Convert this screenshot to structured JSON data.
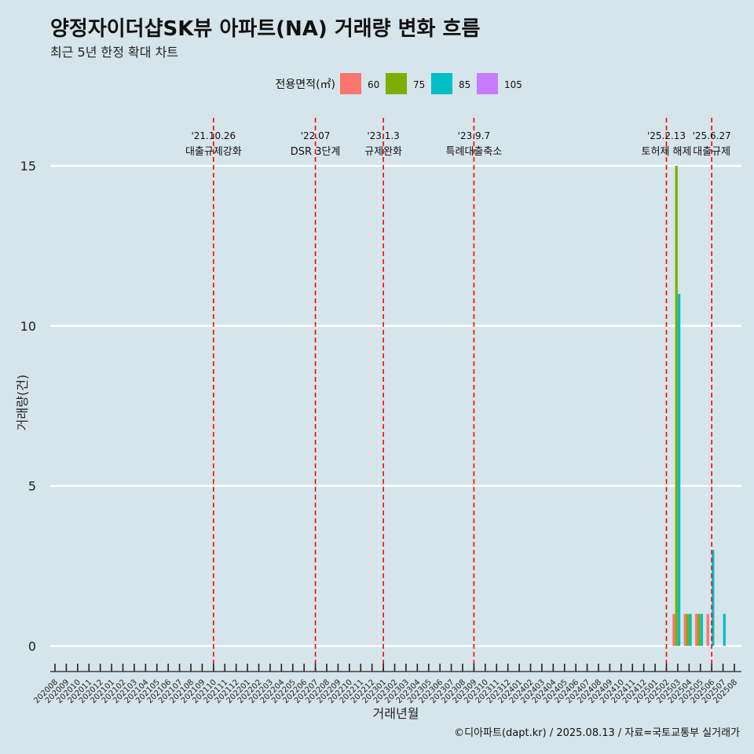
{
  "title": "양정자이더샵SK뷰 아파트(NA) 거래량 변화 흐름",
  "subtitle": "최근 5년 한정 확대 차트",
  "caption": "©디아파트(dapt.kr) / 2025.08.13 / 자료=국토교통부 실거래가",
  "chart_data": {
    "type": "bar",
    "title": "양정자이더샵SK뷰 아파트(NA) 거래량 변화 흐름",
    "subtitle": "최근 5년 한정 확대 차트",
    "xlabel": "거래년월",
    "ylabel": "거래량(건)",
    "ylim": [
      -0.8,
      16.5
    ],
    "yticks": [
      0,
      5,
      10,
      15
    ],
    "grid": "horizontal major lines",
    "legend": {
      "title": "전용면적(㎡)",
      "position": "top"
    },
    "categories": [
      "202008",
      "202009",
      "202010",
      "202011",
      "202012",
      "202101",
      "202102",
      "202103",
      "202104",
      "202105",
      "202106",
      "202107",
      "202108",
      "202109",
      "202110",
      "202111",
      "202112",
      "202201",
      "202202",
      "202203",
      "202204",
      "202205",
      "202206",
      "202207",
      "202208",
      "202209",
      "202210",
      "202211",
      "202212",
      "202301",
      "202302",
      "202303",
      "202304",
      "202305",
      "202306",
      "202307",
      "202308",
      "202309",
      "202310",
      "202311",
      "202312",
      "202401",
      "202402",
      "202403",
      "202404",
      "202405",
      "202406",
      "202407",
      "202408",
      "202409",
      "202410",
      "202411",
      "202412",
      "202501",
      "202502",
      "202503",
      "202504",
      "202505",
      "202506",
      "202507",
      "202508"
    ],
    "series": [
      {
        "name": "60",
        "color": "#f8766d",
        "values": {
          "202503": 1,
          "202504": 1,
          "202505": 1,
          "202506": 1
        }
      },
      {
        "name": "75",
        "color": "#7cae00",
        "values": {
          "202503": 15,
          "202504": 1,
          "202505": 1
        }
      },
      {
        "name": "85",
        "color": "#00bfc4",
        "values": {
          "202503": 11,
          "202504": 1,
          "202505": 1,
          "202506": 3,
          "202507": 1
        }
      },
      {
        "name": "105",
        "color": "#c77cff",
        "values": {}
      }
    ],
    "annotations": [
      {
        "x": "202110",
        "date": "'21.10.26",
        "label": "대출규제강화"
      },
      {
        "x": "202207",
        "date": "'22.07",
        "label": "DSR 3단계"
      },
      {
        "x": "202301",
        "date": "'23.1.3",
        "label": "규제완화"
      },
      {
        "x": "202309",
        "date": "'23.9.7",
        "label": "특례대출축소"
      },
      {
        "x": "202502",
        "date": "'25.2.13",
        "label": "토허제 해제"
      },
      {
        "x": "202506",
        "date": "'25.6.27",
        "label": "대출규제"
      }
    ]
  }
}
